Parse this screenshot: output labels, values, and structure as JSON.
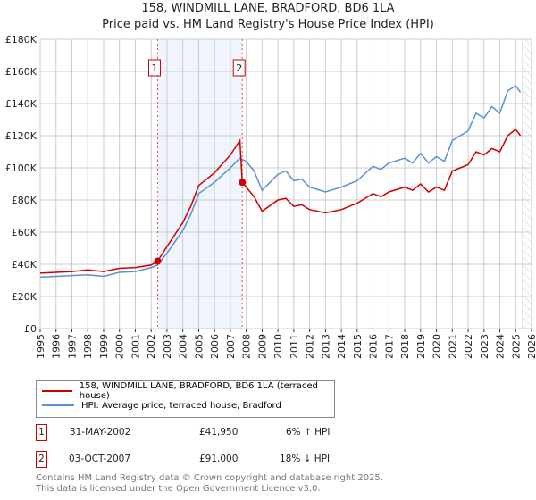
{
  "title": "158, WINDMILL LANE, BRADFORD, BD6 1LA",
  "subtitle": "Price paid vs. HM Land Registry's House Price Index (HPI)",
  "chart_data": {
    "type": "line",
    "title": "158, WINDMILL LANE, BRADFORD, BD6 1LA",
    "subtitle": "Price paid vs. HM Land Registry's House Price Index (HPI)",
    "xlim": [
      1995,
      2026
    ],
    "ylim": [
      0,
      180000
    ],
    "yticks": [
      0,
      20000,
      40000,
      60000,
      80000,
      100000,
      120000,
      140000,
      160000,
      180000
    ],
    "ytick_labels": [
      "£0",
      "£20K",
      "£40K",
      "£60K",
      "£80K",
      "£100K",
      "£120K",
      "£140K",
      "£160K",
      "£180K"
    ],
    "xticks": [
      "1995",
      "1996",
      "1997",
      "1998",
      "1999",
      "2000",
      "2001",
      "2002",
      "2003",
      "2004",
      "2005",
      "2006",
      "2007",
      "2008",
      "2009",
      "2010",
      "2011",
      "2012",
      "2013",
      "2014",
      "2015",
      "2016",
      "2017",
      "2018",
      "2019",
      "2020",
      "2021",
      "2022",
      "2023",
      "2024",
      "2025",
      "2026"
    ],
    "grid": true,
    "shaded_span": [
      2002.41,
      2007.75
    ],
    "hatched_after": 2025.45,
    "series": [
      {
        "name": "158, WINDMILL LANE, BRADFORD, BD6 1LA (terraced house)",
        "color": "#cc0000",
        "x": [
          1995,
          1996,
          1997,
          1998,
          1999,
          2000,
          2001,
          2002,
          2002.41,
          2003,
          2004,
          2004.5,
          2005,
          2006,
          2007,
          2007.6,
          2007.75,
          2008,
          2008.5,
          2009,
          2010,
          2010.5,
          2011,
          2011.5,
          2012,
          2013,
          2014,
          2014.5,
          2015,
          2016,
          2016.5,
          2017,
          2018,
          2018.5,
          2019,
          2019.5,
          2020,
          2020.5,
          2021,
          2021.5,
          2022,
          2022.5,
          2023,
          2023.5,
          2024,
          2024.5,
          2025,
          2025.3
        ],
        "y": [
          34500,
          35000,
          35500,
          36500,
          35500,
          37500,
          38000,
          39500,
          41950,
          51000,
          66000,
          76000,
          89000,
          97000,
          108000,
          117000,
          91000,
          88000,
          82000,
          73000,
          80000,
          81000,
          76000,
          77000,
          74000,
          72000,
          74000,
          76000,
          78000,
          84000,
          82000,
          85000,
          88000,
          86000,
          90000,
          85000,
          88000,
          86000,
          98000,
          100000,
          102000,
          110000,
          108000,
          112000,
          110000,
          120000,
          124000,
          120000
        ]
      },
      {
        "name": "HPI: Average price, terraced house, Bradford",
        "color": "#5b8fd4",
        "x": [
          1995,
          1996,
          1997,
          1998,
          1999,
          2000,
          2001,
          2002,
          2002.41,
          2003,
          2004,
          2004.5,
          2005,
          2006,
          2007,
          2007.6,
          2008,
          2008.5,
          2009,
          2010,
          2010.5,
          2011,
          2011.5,
          2012,
          2013,
          2014,
          2014.5,
          2015,
          2016,
          2016.5,
          2017,
          2018,
          2018.5,
          2019,
          2019.5,
          2020,
          2020.5,
          2021,
          2021.5,
          2022,
          2022.5,
          2023,
          2023.5,
          2024,
          2024.5,
          2025,
          2025.3
        ],
        "y": [
          32000,
          32500,
          33000,
          33500,
          32500,
          35000,
          35500,
          38000,
          39500,
          47000,
          61000,
          71000,
          84000,
          91000,
          100000,
          106000,
          104000,
          98000,
          86000,
          96000,
          98000,
          92000,
          93000,
          88000,
          85000,
          88000,
          90000,
          92000,
          101000,
          99000,
          103000,
          106000,
          103000,
          109000,
          103000,
          107000,
          104000,
          117000,
          120000,
          123000,
          134000,
          131000,
          138000,
          134000,
          148000,
          151000,
          147000
        ]
      }
    ],
    "sales": [
      {
        "label": "1",
        "x": 2002.41,
        "y": 41950
      },
      {
        "label": "2",
        "x": 2007.75,
        "y": 91000
      }
    ]
  },
  "legend": {
    "red": "158, WINDMILL LANE, BRADFORD, BD6 1LA (terraced house)",
    "blue": "HPI: Average price, terraced house, Bradford"
  },
  "table": [
    {
      "num": "1",
      "date": "31-MAY-2002",
      "price": "£41,950",
      "hpi": "6% ↑ HPI"
    },
    {
      "num": "2",
      "date": "03-OCT-2007",
      "price": "£91,000",
      "hpi": "18% ↓ HPI"
    }
  ],
  "footer": {
    "line1": "Contains HM Land Registry data © Crown copyright and database right 2025.",
    "line2": "This data is licensed under the Open Government Licence v3.0."
  }
}
